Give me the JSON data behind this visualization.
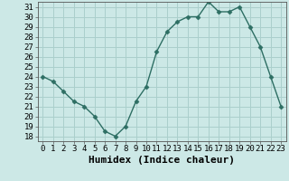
{
  "x": [
    0,
    1,
    2,
    3,
    4,
    5,
    6,
    7,
    8,
    9,
    10,
    11,
    12,
    13,
    14,
    15,
    16,
    17,
    18,
    19,
    20,
    21,
    22,
    23
  ],
  "y": [
    24,
    23.5,
    22.5,
    21.5,
    21,
    20,
    18.5,
    18,
    19,
    21.5,
    23,
    26.5,
    28.5,
    29.5,
    30,
    30,
    31.5,
    30.5,
    30.5,
    31,
    29,
    27,
    24,
    21
  ],
  "line_color": "#2d6e63",
  "marker": "D",
  "marker_size": 2.5,
  "bg_color": "#cce8e6",
  "grid_color": "#aacfcc",
  "xlabel": "Humidex (Indice chaleur)",
  "xlim": [
    -0.5,
    23.5
  ],
  "ylim": [
    17.5,
    31.5
  ],
  "yticks": [
    18,
    19,
    20,
    21,
    22,
    23,
    24,
    25,
    26,
    27,
    28,
    29,
    30,
    31
  ],
  "xtick_labels": [
    "0",
    "1",
    "2",
    "3",
    "4",
    "5",
    "6",
    "7",
    "8",
    "9",
    "10",
    "11",
    "12",
    "13",
    "14",
    "15",
    "16",
    "17",
    "18",
    "19",
    "20",
    "21",
    "22",
    "23"
  ],
  "tick_fontsize": 6.5,
  "xlabel_fontsize": 8
}
